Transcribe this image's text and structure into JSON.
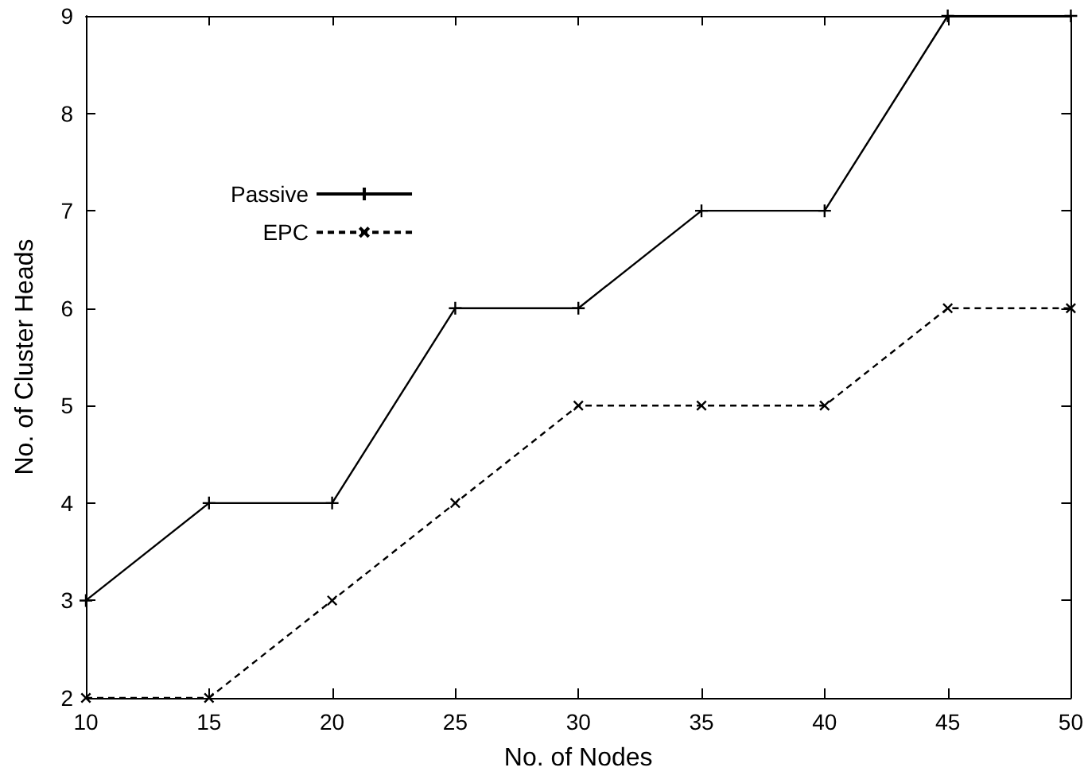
{
  "chart_data": {
    "type": "line",
    "xlabel": "No. of Nodes",
    "ylabel": "No. of Cluster Heads",
    "x": [
      10,
      15,
      20,
      25,
      30,
      35,
      40,
      45,
      50
    ],
    "series": [
      {
        "name": "Passive",
        "color": "#000000",
        "line_style": "solid",
        "values": [
          3,
          4,
          4,
          6,
          6,
          7,
          7,
          9,
          9
        ]
      },
      {
        "name": "EPC",
        "color": "#000000",
        "line_style": "dashed",
        "values": [
          2,
          2,
          3,
          4,
          5,
          5,
          5,
          6,
          6
        ]
      }
    ],
    "xlim": [
      10,
      50
    ],
    "xticks": [
      10,
      15,
      20,
      25,
      30,
      35,
      40,
      45,
      50
    ],
    "ylim": [
      2,
      9
    ],
    "yticks": [
      2,
      3,
      4,
      5,
      6,
      7,
      8,
      9
    ],
    "grid": false,
    "legend": "top left",
    "marker": "cross"
  }
}
